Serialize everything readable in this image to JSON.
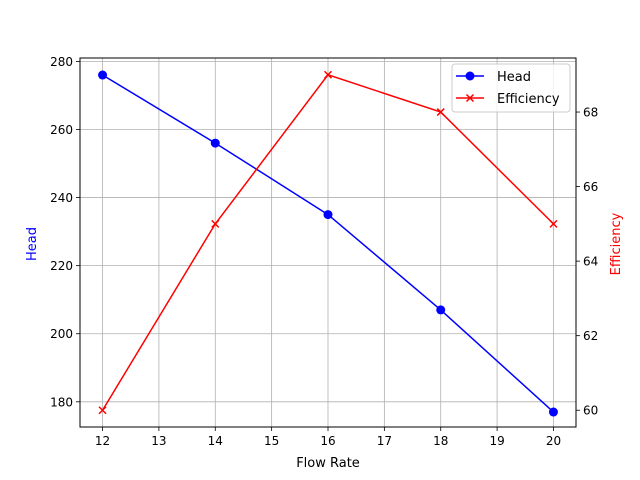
{
  "chart_data": {
    "type": "line",
    "title": "",
    "xlabel": "Flow Rate",
    "ylabel": "Head",
    "y2label": "Efficiency",
    "x": [
      12,
      14,
      16,
      18,
      20
    ],
    "xlim": [
      11.6,
      20.4
    ],
    "xticks": [
      12,
      13,
      14,
      15,
      16,
      17,
      18,
      19,
      20
    ],
    "ylim": [
      172.6,
      281.0
    ],
    "yticks": [
      180,
      200,
      220,
      240,
      260,
      280
    ],
    "y2lim": [
      59.55,
      69.45
    ],
    "y2ticks": [
      60,
      62,
      64,
      66,
      68
    ],
    "grid": true,
    "legend_position": "upper right",
    "series": [
      {
        "name": "Head",
        "axis": "left",
        "color": "#0000ff",
        "marker": "circle",
        "values": [
          276,
          256,
          235,
          207,
          177
        ]
      },
      {
        "name": "Efficiency",
        "axis": "right",
        "color": "#ff0000",
        "marker": "x",
        "values": [
          60,
          65,
          69,
          68,
          65
        ]
      }
    ]
  },
  "legend": {
    "items": [
      {
        "label": "Head",
        "color": "#0000ff",
        "marker": "circle"
      },
      {
        "label": "Efficiency",
        "color": "#ff0000",
        "marker": "x"
      }
    ]
  },
  "colors": {
    "left_axis_label": "#0000ff",
    "right_axis_label": "#ff0000",
    "grid": "#b0b0b0",
    "axes": "#000000"
  }
}
